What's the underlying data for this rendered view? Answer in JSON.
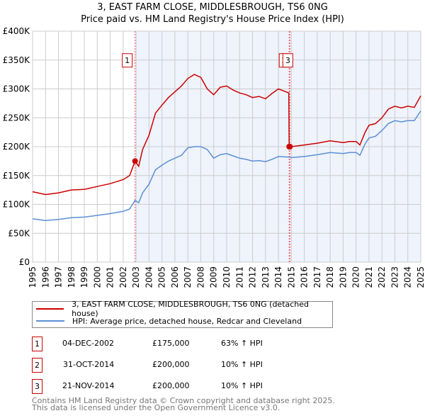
{
  "header": {
    "title": "3, EAST FARM CLOSE, MIDDLESBROUGH, TS6 0NG",
    "subtitle": "Price paid vs. HM Land Registry's House Price Index (HPI)"
  },
  "chart_data": {
    "type": "line",
    "title": "3, EAST FARM CLOSE, MIDDLESBROUGH, TS6 0NG",
    "subtitle": "Price paid vs. HM Land Registry's House Price Index (HPI)",
    "xlim": [
      1995,
      2025
    ],
    "ylim": [
      0,
      400000
    ],
    "x_ticks": [
      "1995",
      "1996",
      "1997",
      "1998",
      "1999",
      "2000",
      "2001",
      "2002",
      "2003",
      "2004",
      "2005",
      "2006",
      "2007",
      "2008",
      "2009",
      "2010",
      "2011",
      "2012",
      "2013",
      "2014",
      "2015",
      "2016",
      "2017",
      "2018",
      "2019",
      "2020",
      "2021",
      "2022",
      "2023",
      "2024",
      "2025"
    ],
    "y_ticks": [
      {
        "v": 0,
        "label": "£0"
      },
      {
        "v": 50000,
        "label": "£50K"
      },
      {
        "v": 100000,
        "label": "£100K"
      },
      {
        "v": 150000,
        "label": "£150K"
      },
      {
        "v": 200000,
        "label": "£200K"
      },
      {
        "v": 250000,
        "label": "£250K"
      },
      {
        "v": 300000,
        "label": "£300K"
      },
      {
        "v": 350000,
        "label": "£350K"
      },
      {
        "v": 400000,
        "label": "£400K"
      }
    ],
    "grid": true,
    "shaded_from": 2002.92,
    "series": [
      {
        "name": "3, EAST FARM CLOSE, MIDDLESBROUGH, TS6 0NG (detached house)",
        "color": "#cc0000",
        "x": [
          1995,
          1996,
          1997,
          1998,
          1999,
          2000,
          2001,
          2002,
          2002.5,
          2002.92,
          2003.2,
          2003.5,
          2004,
          2004.5,
          2005,
          2005.5,
          2006,
          2006.5,
          2007,
          2007.5,
          2008,
          2008.5,
          2009,
          2009.5,
          2010,
          2010.5,
          2011,
          2011.5,
          2012,
          2012.5,
          2013,
          2013.5,
          2014,
          2014.8,
          2014.83,
          2015,
          2016,
          2017,
          2018,
          2019,
          2019.5,
          2020,
          2020.3,
          2020.7,
          2021,
          2021.5,
          2022,
          2022.5,
          2023,
          2023.5,
          2024,
          2024.5,
          2025
        ],
        "y": [
          122000,
          117000,
          120000,
          125000,
          126000,
          131000,
          136000,
          143000,
          150000,
          175000,
          166000,
          195000,
          220000,
          258000,
          272000,
          285000,
          295000,
          305000,
          318000,
          325000,
          320000,
          300000,
          290000,
          303000,
          305000,
          298000,
          293000,
          290000,
          285000,
          287000,
          283000,
          292000,
          300000,
          293000,
          200000,
          200000,
          203000,
          206000,
          210000,
          207000,
          209000,
          209000,
          203000,
          225000,
          237000,
          240000,
          250000,
          265000,
          270000,
          267000,
          270000,
          268000,
          288000
        ]
      },
      {
        "name": "HPI: Average price, detached house, Redcar and Cleveland",
        "color": "#5b8fd4",
        "x": [
          1995,
          1996,
          1997,
          1998,
          1999,
          2000,
          2001,
          2002,
          2002.5,
          2002.92,
          2003.2,
          2003.5,
          2004,
          2004.5,
          2005,
          2005.5,
          2006,
          2006.5,
          2007,
          2007.5,
          2008,
          2008.5,
          2009,
          2009.5,
          2010,
          2010.5,
          2011,
          2011.5,
          2012,
          2012.5,
          2013,
          2013.5,
          2014,
          2014.8,
          2015,
          2016,
          2017,
          2018,
          2019,
          2019.5,
          2020,
          2020.3,
          2020.7,
          2021,
          2021.5,
          2022,
          2022.5,
          2023,
          2023.5,
          2024,
          2024.5,
          2025
        ],
        "y": [
          75000,
          72000,
          74000,
          77000,
          78000,
          81000,
          84000,
          88000,
          92000,
          107000,
          103000,
          120000,
          135000,
          160000,
          168000,
          175000,
          180000,
          185000,
          198000,
          200000,
          200000,
          195000,
          180000,
          186000,
          188000,
          184000,
          180000,
          178000,
          175000,
          176000,
          174000,
          178000,
          183000,
          182000,
          181000,
          183000,
          186000,
          190000,
          188000,
          190000,
          190000,
          185000,
          205000,
          215000,
          218000,
          228000,
          240000,
          245000,
          243000,
          245000,
          245000,
          262000
        ]
      }
    ],
    "sales": [
      {
        "id": "1",
        "x": 2002.92,
        "y": 175000
      },
      {
        "id": "2",
        "x": 2014.83,
        "y": 200000
      },
      {
        "id": "3",
        "x": 2014.89,
        "y": 200000
      }
    ]
  },
  "legend": {
    "items": [
      {
        "label": "3, EAST FARM CLOSE, MIDDLESBROUGH, TS6 0NG (detached house)",
        "color": "#cc0000"
      },
      {
        "label": "HPI: Average price, detached house, Redcar and Cleveland",
        "color": "#5b8fd4"
      }
    ]
  },
  "transactions": [
    {
      "id": "1",
      "date": "04-DEC-2002",
      "price": "£175,000",
      "hpi": "63% ↑ HPI"
    },
    {
      "id": "2",
      "date": "31-OCT-2014",
      "price": "£200,000",
      "hpi": "10% ↑ HPI"
    },
    {
      "id": "3",
      "date": "21-NOV-2014",
      "price": "£200,000",
      "hpi": "10% ↑ HPI"
    }
  ],
  "footer": {
    "line1": "Contains HM Land Registry data © Crown copyright and database right 2025.",
    "line2": "This data is licensed under the Open Government Licence v3.0."
  }
}
